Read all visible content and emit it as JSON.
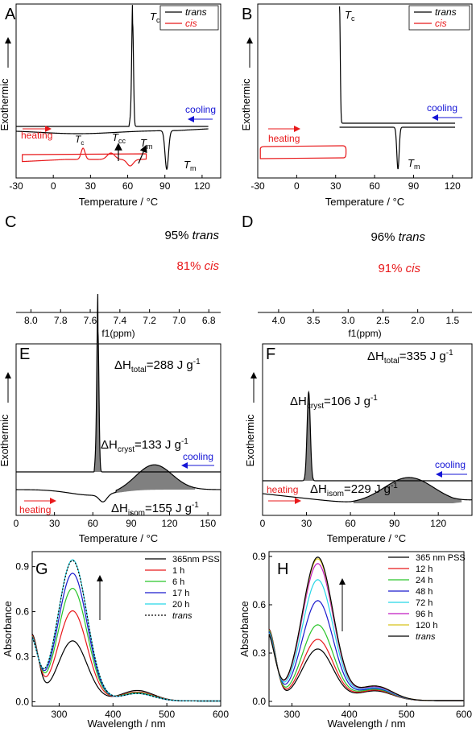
{
  "colors": {
    "trans": "#000000",
    "cis": "#e8191b",
    "cooling": "#1515d6",
    "heating": "#e8191b",
    "fill": "#808080"
  },
  "chart_data": [
    {
      "panel": "A",
      "type": "line",
      "xlabel": "Temperature / °C",
      "ylabel": "Exothermic",
      "xlim": [
        -30,
        135
      ],
      "xticks": [
        -30,
        0,
        30,
        60,
        90,
        120
      ],
      "legend": [
        "trans",
        "cis"
      ],
      "legend_placement": "top-right",
      "annotations": {
        "Tc": "T",
        "Tc_sub": "c",
        "Tcc": "T",
        "Tcc_sub": "cc",
        "Tm": "T",
        "Tm_sub": "m",
        "Tc_cis": "T",
        "Tc_cis_sub": "c",
        "Tm2": "T",
        "Tm2_sub": "m",
        "cooling": "cooling",
        "heating": "heating"
      },
      "events": [
        {
          "name": "trans crystallization peak (cooling)",
          "x": 64
        },
        {
          "name": "trans melting peak (heating)",
          "x": 91
        },
        {
          "name": "cis crystallization peak",
          "x": 24
        },
        {
          "name": "cis cold crystallization",
          "x": 47
        },
        {
          "name": "cis melting",
          "x": 62
        }
      ]
    },
    {
      "panel": "B",
      "type": "line",
      "xlabel": "Temperature / °C",
      "ylabel": "Exothermic",
      "xlim": [
        -30,
        135
      ],
      "xticks": [
        -30,
        0,
        30,
        60,
        90,
        120
      ],
      "legend": [
        "trans",
        "cis"
      ],
      "legend_placement": "top-right",
      "annotations": {
        "Tc": "T",
        "Tc_sub": "c",
        "Tm": "T",
        "Tm_sub": "m",
        "cooling": "cooling",
        "heating": "heating"
      },
      "events": [
        {
          "name": "trans crystallization peak (cooling)",
          "x": 33
        },
        {
          "name": "trans melting peak (heating)",
          "x": 78
        }
      ]
    },
    {
      "panel": "C",
      "type": "line",
      "xlabel": "f1(ppm)",
      "xlim": [
        8.1,
        6.72
      ],
      "xticks": [
        "8.0",
        "7.8",
        "7.6",
        "7.4",
        "7.2",
        "7.0",
        "6.8"
      ],
      "labels": {
        "top": "95% ",
        "top_italic": "trans",
        "bottom": "81% ",
        "bottom_italic": "cis"
      }
    },
    {
      "panel": "D",
      "type": "line",
      "xlabel": "f1(ppm)",
      "xlim": [
        4.3,
        1.22
      ],
      "xticks": [
        "4.0",
        "3.5",
        "3.0",
        "2.5",
        "2.0",
        "1.5"
      ],
      "labels": {
        "top": "96% ",
        "top_italic": "trans",
        "bottom": "91% ",
        "bottom_italic": "cis"
      }
    },
    {
      "panel": "E",
      "type": "area",
      "xlabel": "Temperature / °C",
      "ylabel": "Exothermic",
      "xlim": [
        0,
        160
      ],
      "xticks": [
        0,
        30,
        60,
        90,
        120,
        150
      ],
      "annotations": {
        "total_pre": "ΔH",
        "total_sub": "total",
        "total_val": "=288 J g",
        "total_exp": "-1",
        "cryst_pre": "ΔH",
        "cryst_sub": "cryst",
        "cryst_val": "=133 J g",
        "cryst_exp": "-1",
        "isom_pre": "ΔH",
        "isom_sub": "isom",
        "isom_val": "=155 J g",
        "isom_exp": "-1",
        "cooling": "cooling",
        "heating": "heating"
      },
      "values": {
        "dH_total": 288,
        "dH_cryst": 133,
        "dH_isom": 155,
        "cryst_peak_x": 64,
        "isom_peak_x": 108
      }
    },
    {
      "panel": "F",
      "type": "area",
      "xlabel": "Temperature / °C",
      "ylabel": "Exothermic",
      "xlim": [
        0,
        143
      ],
      "xticks": [
        0,
        30,
        60,
        90,
        120
      ],
      "annotations": {
        "total_pre": "ΔH",
        "total_sub": "total",
        "total_val": "=335 J g",
        "total_exp": "-1",
        "cryst_pre": "ΔH",
        "cryst_sub": "cryst",
        "cryst_val": "=106 J g",
        "cryst_exp": "-1",
        "isom_pre": "ΔH",
        "isom_sub": "isom",
        "isom_val": "=229 J g",
        "isom_exp": "-1",
        "cooling": "cooling",
        "heating": "heating"
      },
      "values": {
        "dH_total": 335,
        "dH_cryst": 106,
        "dH_isom": 229,
        "cryst_peak_x": 31,
        "isom_peak_x": 100
      }
    },
    {
      "panel": "G",
      "type": "line",
      "xlabel": "Wavelength / nm",
      "ylabel": "Absorbance",
      "xlim": [
        250,
        600
      ],
      "ylim": [
        -0.03,
        1.0
      ],
      "xticks": [
        300,
        400,
        500,
        600
      ],
      "yticks": [
        "0.0",
        "0.3",
        "0.6",
        "0.9"
      ],
      "legend_placement": "top-right",
      "series": [
        {
          "name": "365nm PSS",
          "color": "#000000",
          "dash": false,
          "peak": 0.4,
          "valley": 0.07
        },
        {
          "name": "1 h",
          "color": "#e8191b",
          "dash": false,
          "peak": 0.6,
          "valley": 0.06
        },
        {
          "name": "6 h",
          "color": "#2ac52a",
          "dash": false,
          "peak": 0.75,
          "valley": 0.055
        },
        {
          "name": "17 h",
          "color": "#1a1acd",
          "dash": false,
          "peak": 0.85,
          "valley": 0.05
        },
        {
          "name": "20 h",
          "color": "#26d6e6",
          "dash": false,
          "peak": 0.94,
          "valley": 0.05
        },
        {
          "name": "trans",
          "color": "#000000",
          "dash": true,
          "peak": 0.935,
          "valley": 0.05
        }
      ]
    },
    {
      "panel": "H",
      "type": "line",
      "xlabel": "Wavelength / nm",
      "ylabel": "Absorbance",
      "xlim": [
        260,
        600
      ],
      "ylim": [
        -0.03,
        0.93
      ],
      "xticks": [
        300,
        400,
        500,
        600
      ],
      "yticks": [
        "0.0",
        "0.3",
        "0.6",
        "0.9"
      ],
      "legend_placement": "top-right",
      "series": [
        {
          "name": "365 nm PSS",
          "color": "#000000",
          "dash": false,
          "peak": 0.32,
          "valley": 0.06
        },
        {
          "name": "12 h",
          "color": "#e8191b",
          "dash": false,
          "peak": 0.38,
          "valley": 0.065
        },
        {
          "name": "24 h",
          "color": "#2ac52a",
          "dash": false,
          "peak": 0.47,
          "valley": 0.07
        },
        {
          "name": "48 h",
          "color": "#1a1acd",
          "dash": false,
          "peak": 0.62,
          "valley": 0.075
        },
        {
          "name": "72 h",
          "color": "#26d6e6",
          "dash": false,
          "peak": 0.75,
          "valley": 0.08
        },
        {
          "name": "96 h",
          "color": "#c01ac0",
          "dash": false,
          "peak": 0.85,
          "valley": 0.085
        },
        {
          "name": "120 h",
          "color": "#d6c21a",
          "dash": false,
          "peak": 0.88,
          "valley": 0.09
        },
        {
          "name": "trans",
          "color": "#000000",
          "dash": false,
          "peak": 0.89,
          "valley": 0.09
        }
      ]
    }
  ]
}
